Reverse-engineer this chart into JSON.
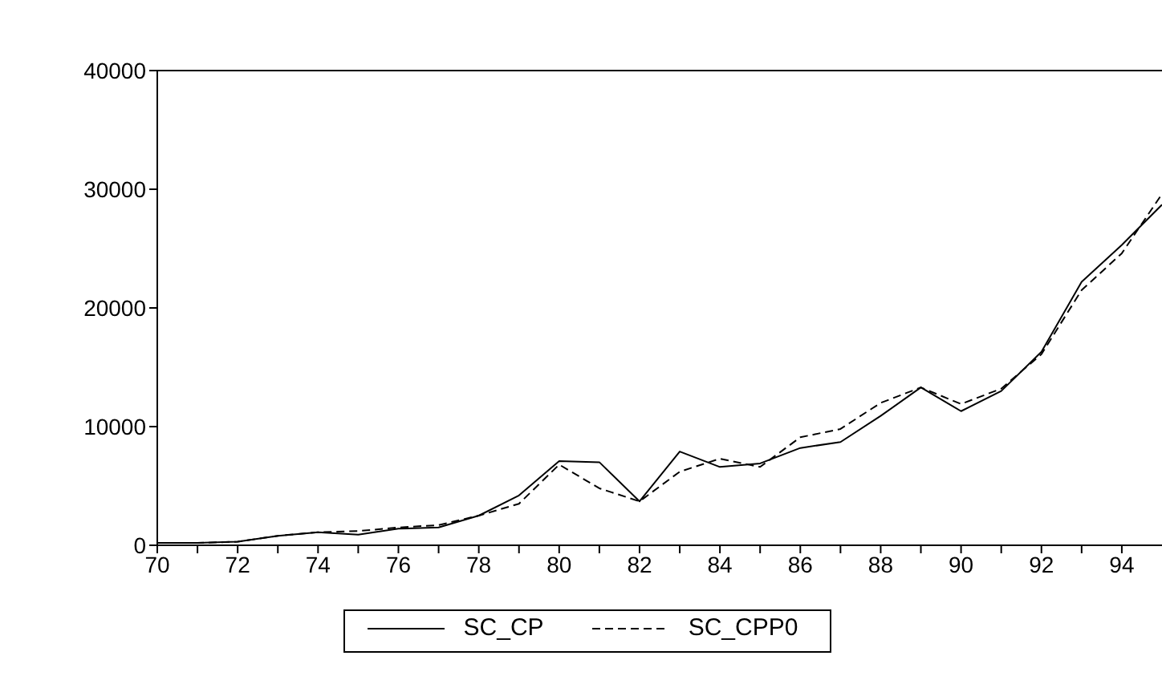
{
  "chart_data": {
    "type": "line",
    "x": [
      70,
      71,
      72,
      73,
      74,
      75,
      76,
      77,
      78,
      79,
      80,
      81,
      82,
      83,
      84,
      85,
      86,
      87,
      88,
      89,
      90,
      91,
      92,
      93,
      94,
      95
    ],
    "series": [
      {
        "name": "SC_CP",
        "color": "#000000",
        "line_style": "solid",
        "values": [
          200,
          200,
          300,
          800,
          1100,
          900,
          1400,
          1500,
          2500,
          4200,
          7100,
          7000,
          3700,
          7900,
          6600,
          6900,
          8200,
          8700,
          10900,
          13300,
          11300,
          13000,
          16300,
          22200,
          25300,
          28700
        ]
      },
      {
        "name": "SC_CPP0",
        "color": "#000000",
        "line_style": "dashed",
        "values": [
          200,
          200,
          300,
          800,
          1100,
          1200,
          1500,
          1700,
          2500,
          3500,
          6800,
          4800,
          3700,
          6200,
          7300,
          6600,
          9100,
          9800,
          12000,
          13300,
          11900,
          13200,
          16100,
          21500,
          24600,
          29600
        ]
      }
    ],
    "xlim": [
      70,
      95
    ],
    "xticks": [
      70,
      {
        "value": 71,
        "label": null
      },
      72,
      {
        "value": 73,
        "label": null
      },
      74,
      {
        "value": 75,
        "label": null
      },
      76,
      {
        "value": 77,
        "label": null
      },
      78,
      {
        "value": 79,
        "label": null
      },
      80,
      {
        "value": 81,
        "label": null
      },
      82,
      {
        "value": 83,
        "label": null
      },
      84,
      {
        "value": 85,
        "label": null
      },
      86,
      {
        "value": 87,
        "label": null
      },
      88,
      {
        "value": 89,
        "label": null
      },
      90,
      {
        "value": 91,
        "label": null
      },
      92,
      {
        "value": 93,
        "label": null
      },
      94
    ],
    "ylim": [
      0,
      40000
    ],
    "yticks": [
      0,
      10000,
      20000,
      30000,
      40000
    ],
    "grid": false,
    "legend": "bottom",
    "marker": "none"
  }
}
